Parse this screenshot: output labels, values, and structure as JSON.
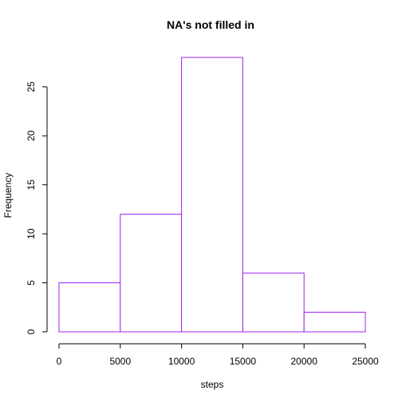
{
  "chart_data": {
    "type": "bar",
    "title": "NA's not filled in",
    "xlabel": "steps",
    "ylabel": "Frequency",
    "bins": [
      {
        "from": 0,
        "to": 5000,
        "value": 5
      },
      {
        "from": 5000,
        "to": 10000,
        "value": 12
      },
      {
        "from": 10000,
        "to": 15000,
        "value": 28
      },
      {
        "from": 15000,
        "to": 20000,
        "value": 6
      },
      {
        "from": 20000,
        "to": 25000,
        "value": 2
      }
    ],
    "xlim": [
      0,
      25000
    ],
    "ylim": [
      0,
      28
    ],
    "x_ticks": [
      0,
      5000,
      10000,
      15000,
      20000,
      25000
    ],
    "y_ticks": [
      0,
      5,
      10,
      15,
      20,
      25
    ],
    "bar_color": "#a020f0",
    "bar_fill": "#ffffff",
    "grid": false,
    "legend": "none"
  }
}
